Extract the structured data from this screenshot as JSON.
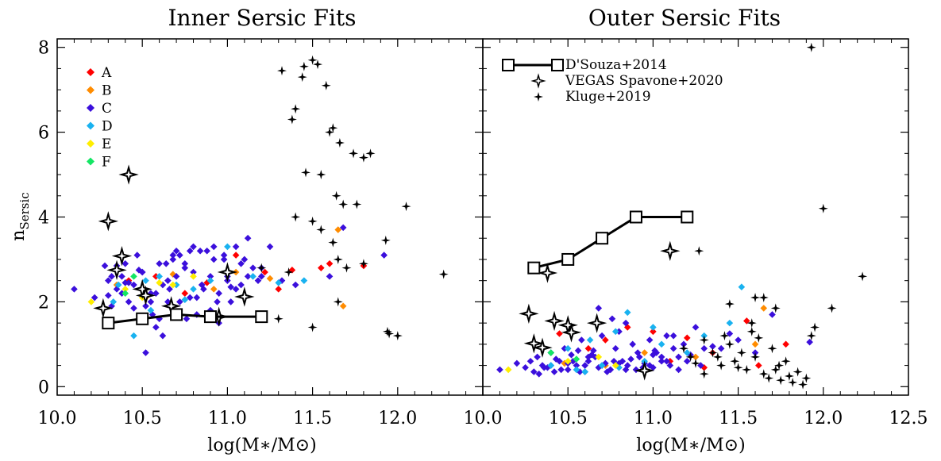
{
  "chart_data": [
    {
      "type": "scatter",
      "title": "Inner Sersic Fits",
      "xlabel": "log(M∗/M⊙)",
      "ylabel": "n",
      "ylabel_sub": "Sersic",
      "xlim": [
        10.0,
        12.5
      ],
      "ylim": [
        -0.2,
        8.2
      ],
      "xticks": [
        "10.0",
        "10.5",
        "11.0",
        "11.5",
        "12.0"
      ],
      "yticks": [
        "0",
        "2",
        "4",
        "6",
        "8"
      ],
      "legend": {
        "placement": "top-left",
        "entries": [
          {
            "label": "A",
            "color": "#ff0000"
          },
          {
            "label": "B",
            "color": "#ff8c00"
          },
          {
            "label": "C",
            "color": "#3b0fdc"
          },
          {
            "label": "D",
            "color": "#19b2f0"
          },
          {
            "label": "E",
            "color": "#ffee00"
          },
          {
            "label": "F",
            "color": "#14e664"
          }
        ]
      },
      "series": [
        {
          "name": "D'Souza+2014",
          "marker": "open-square-line",
          "x": [
            10.3,
            10.5,
            10.7,
            10.9,
            11.2
          ],
          "y": [
            1.5,
            1.6,
            1.7,
            1.65,
            1.65
          ]
        },
        {
          "name": "VEGAS Spavone+2020",
          "marker": "open-star",
          "x": [
            10.3,
            10.27,
            10.35,
            10.38,
            10.42,
            10.5,
            10.52,
            10.67,
            10.95,
            11.0,
            11.1
          ],
          "y": [
            3.9,
            1.85,
            2.75,
            3.08,
            5.0,
            2.3,
            2.15,
            1.9,
            1.65,
            2.7,
            2.12
          ]
        },
        {
          "name": "Kluge+2019",
          "marker": "filled-star",
          "x": [
            11.32,
            11.38,
            11.4,
            11.44,
            11.45,
            11.5,
            11.53,
            11.58,
            11.6,
            11.62,
            11.66,
            11.74,
            11.8,
            11.84,
            11.46,
            11.55,
            11.64,
            11.68,
            11.76,
            11.4,
            11.5,
            11.55,
            11.62,
            11.65,
            11.7,
            11.8,
            11.93,
            11.94,
            12.05,
            12.27,
            11.95,
            12.0,
            11.2,
            11.3,
            11.5,
            11.65,
            11.36
          ],
          "y": [
            7.45,
            6.3,
            6.55,
            7.3,
            7.55,
            7.7,
            7.6,
            7.1,
            6.0,
            6.1,
            5.75,
            5.5,
            5.4,
            5.5,
            5.05,
            5.0,
            4.5,
            4.3,
            4.3,
            4.0,
            3.9,
            3.7,
            3.4,
            3.0,
            2.8,
            2.9,
            3.45,
            1.3,
            4.25,
            2.65,
            1.25,
            1.2,
            2.8,
            1.6,
            1.4,
            2.0,
            2.7
          ]
        },
        {
          "name": "A",
          "marker": "diamond",
          "x": [
            10.42,
            10.58,
            10.75,
            10.88,
            11.05,
            11.22,
            11.38,
            11.3,
            11.55,
            11.6,
            11.8
          ],
          "y": [
            2.5,
            2.6,
            2.2,
            2.45,
            3.1,
            2.7,
            2.75,
            2.3,
            2.8,
            2.9,
            2.85
          ]
        },
        {
          "name": "B",
          "marker": "diamond",
          "x": [
            10.35,
            10.52,
            10.68,
            10.92,
            11.05,
            11.25,
            11.65,
            11.68
          ],
          "y": [
            2.4,
            2.1,
            2.65,
            2.3,
            2.7,
            2.55,
            3.7,
            1.9
          ]
        },
        {
          "name": "C",
          "marker": "diamond",
          "x": [
            10.1,
            10.22,
            10.28,
            10.3,
            10.32,
            10.35,
            10.38,
            10.4,
            10.42,
            10.45,
            10.47,
            10.5,
            10.52,
            10.55,
            10.58,
            10.6,
            10.62,
            10.65,
            10.68,
            10.7,
            10.72,
            10.75,
            10.78,
            10.8,
            10.82,
            10.85,
            10.88,
            10.9,
            10.92,
            10.95,
            10.98,
            11.0,
            11.02,
            11.05,
            11.08,
            11.1,
            11.12,
            11.15,
            11.18,
            11.2,
            10.3,
            10.38,
            10.45,
            10.55,
            10.62,
            10.68,
            10.75,
            10.82,
            10.9,
            10.98,
            11.05,
            11.12,
            11.2,
            10.35,
            10.42,
            10.52,
            10.6,
            10.66,
            10.72,
            10.8,
            10.86,
            10.92,
            11.0,
            11.08,
            10.48,
            10.58,
            10.65,
            10.7,
            10.78,
            10.85,
            10.95,
            11.25,
            11.32,
            11.4,
            11.6,
            11.68,
            11.92,
            10.32,
            10.4,
            10.5,
            10.56,
            10.64,
            10.76,
            10.84,
            10.94,
            11.02
          ],
          "y": [
            2.3,
            2.1,
            2.85,
            2.5,
            2.6,
            2.3,
            2.2,
            2.9,
            2.0,
            2.4,
            3.1,
            2.7,
            1.9,
            2.2,
            1.4,
            2.9,
            1.2,
            2.5,
            3.0,
            2.6,
            2.0,
            2.8,
            3.2,
            3.3,
            1.7,
            2.4,
            3.2,
            2.6,
            3.3,
            2.2,
            3.1,
            2.5,
            2.0,
            3.3,
            2.4,
            3.0,
            3.5,
            2.8,
            2.5,
            2.6,
            2.15,
            2.6,
            1.85,
            2.0,
            2.4,
            3.1,
            2.9,
            2.1,
            1.8,
            3.0,
            2.3,
            2.6,
            2.8,
            2.85,
            2.45,
            0.8,
            1.6,
            2.3,
            3.1,
            2.7,
            2.3,
            3.0,
            2.6,
            2.9,
            2.75,
            2.2,
            2.0,
            3.2,
            2.1,
            2.4,
            1.5,
            3.3,
            2.5,
            2.4,
            2.6,
            3.75,
            3.1,
            1.9,
            2.45,
            2.7,
            1.7,
            2.9,
            1.6,
            3.2,
            2.0,
            2.35
          ]
        },
        {
          "name": "D",
          "marker": "diamond",
          "x": [
            10.33,
            10.36,
            10.45,
            10.52,
            10.6,
            10.7,
            10.8,
            10.9,
            11.0,
            11.15,
            11.3,
            11.45,
            10.55,
            10.75
          ],
          "y": [
            2.0,
            2.4,
            1.2,
            2.5,
            2.6,
            2.4,
            2.3,
            2.5,
            3.3,
            2.6,
            2.45,
            2.5,
            1.8,
            2.05
          ]
        },
        {
          "name": "E",
          "marker": "diamond",
          "x": [
            10.2,
            10.4,
            10.5,
            10.6,
            10.68,
            10.8
          ],
          "y": [
            2.0,
            2.3,
            2.1,
            2.45,
            2.4,
            2.6
          ]
        },
        {
          "name": "F",
          "marker": "diamond",
          "x": [
            10.4,
            10.45
          ],
          "y": [
            2.2,
            2.6
          ]
        }
      ]
    },
    {
      "type": "scatter",
      "title": "Outer Sersic Fits",
      "xlabel": "log(M∗/M⊙)",
      "xlim": [
        10.0,
        12.5
      ],
      "ylim": [
        -0.2,
        8.2
      ],
      "xticks": [
        "10.0",
        "10.5",
        "11.0",
        "11.5",
        "12.0",
        "12.5"
      ],
      "legend": {
        "placement": "top-left",
        "entries": [
          {
            "label": "D'Souza+2014",
            "marker": "open-square-line"
          },
          {
            "label": "VEGAS Spavone+2020",
            "marker": "open-star"
          },
          {
            "label": "Kluge+2019",
            "marker": "filled-star"
          }
        ]
      },
      "series": [
        {
          "name": "D'Souza+2014",
          "marker": "open-square-line",
          "x": [
            10.3,
            10.5,
            10.7,
            10.9,
            11.2
          ],
          "y": [
            2.8,
            3.0,
            3.5,
            4.0,
            4.0
          ]
        },
        {
          "name": "VEGAS Spavone+2020",
          "marker": "open-star",
          "x": [
            10.27,
            10.3,
            10.35,
            10.38,
            10.42,
            10.5,
            10.52,
            10.67,
            10.95,
            11.1
          ],
          "y": [
            1.72,
            1.02,
            0.92,
            2.68,
            1.55,
            1.45,
            1.28,
            1.5,
            0.38,
            3.2
          ]
        },
        {
          "name": "Kluge+2019",
          "marker": "filled-star",
          "x": [
            11.93,
            12.0,
            11.27,
            12.23,
            12.05,
            11.6,
            11.65,
            11.45,
            11.72,
            11.95,
            11.93,
            11.18,
            11.22,
            11.3,
            11.35,
            11.4,
            11.42,
            11.48,
            11.5,
            11.55,
            11.58,
            11.6,
            11.62,
            11.65,
            11.7,
            11.72,
            11.75,
            11.78,
            11.8,
            11.82,
            11.85,
            11.88,
            11.9,
            11.45,
            11.52,
            11.58,
            11.25,
            11.3,
            11.38,
            11.68,
            11.74
          ],
          "y": [
            8.0,
            4.2,
            3.2,
            2.6,
            1.85,
            2.1,
            2.1,
            1.95,
            1.85,
            1.4,
            1.2,
            0.9,
            0.7,
            1.1,
            0.8,
            0.5,
            1.2,
            0.6,
            0.45,
            0.4,
            1.3,
            0.7,
            1.15,
            0.3,
            0.9,
            0.4,
            0.15,
            0.6,
            0.25,
            0.1,
            0.35,
            0.05,
            0.2,
            1.0,
            0.8,
            1.5,
            0.55,
            0.3,
            0.7,
            0.2,
            0.5
          ]
        },
        {
          "name": "A",
          "marker": "diamond",
          "x": [
            10.45,
            10.62,
            10.72,
            11.0,
            11.1,
            11.2,
            11.35,
            11.55,
            11.62,
            11.78,
            10.85,
            11.3
          ],
          "y": [
            1.25,
            0.9,
            1.1,
            1.3,
            0.6,
            1.15,
            0.8,
            1.55,
            0.5,
            1.0,
            1.4,
            0.45
          ]
        },
        {
          "name": "B",
          "marker": "diamond",
          "x": [
            10.48,
            10.72,
            10.95,
            11.25,
            11.6,
            11.65
          ],
          "y": [
            0.55,
            0.5,
            0.8,
            0.7,
            1.0,
            1.85
          ]
        },
        {
          "name": "C",
          "marker": "diamond",
          "x": [
            10.1,
            10.2,
            10.25,
            10.28,
            10.3,
            10.32,
            10.35,
            10.38,
            10.4,
            10.42,
            10.45,
            10.48,
            10.5,
            10.52,
            10.55,
            10.58,
            10.6,
            10.62,
            10.65,
            10.68,
            10.7,
            10.72,
            10.75,
            10.78,
            10.8,
            10.82,
            10.85,
            10.88,
            10.9,
            10.92,
            10.95,
            10.98,
            11.0,
            11.02,
            11.05,
            11.08,
            11.1,
            11.12,
            11.15,
            11.18,
            11.2,
            11.22,
            11.25,
            11.28,
            11.3,
            10.33,
            10.4,
            10.46,
            10.53,
            10.6,
            10.66,
            10.73,
            10.8,
            10.87,
            10.94,
            11.01,
            11.08,
            11.15,
            10.36,
            10.43,
            10.5,
            10.57,
            10.64,
            10.7,
            10.77,
            10.84,
            10.91,
            10.98,
            11.05,
            11.4,
            11.5,
            11.6,
            11.7,
            11.92,
            10.68,
            10.76,
            10.84,
            10.62,
            10.56,
            11.35,
            11.45,
            11.12,
            11.0
          ],
          "y": [
            0.4,
            0.55,
            0.45,
            0.6,
            0.35,
            0.7,
            0.5,
            0.45,
            0.8,
            0.35,
            0.6,
            0.9,
            0.4,
            0.75,
            0.5,
            1.1,
            0.35,
            0.6,
            0.85,
            0.45,
            1.2,
            0.55,
            0.4,
            0.9,
            1.3,
            0.6,
            0.5,
            1.0,
            0.4,
            0.7,
            0.55,
            1.1,
            0.45,
            0.8,
            0.6,
            1.2,
            0.5,
            0.9,
            0.7,
            1.0,
            0.6,
            0.75,
            1.4,
            0.5,
            0.9,
            0.3,
            0.5,
            0.4,
            0.6,
            0.5,
            0.7,
            0.35,
            0.55,
            0.65,
            0.45,
            0.85,
            0.6,
            0.4,
            0.45,
            0.65,
            0.55,
            0.35,
            0.75,
            0.5,
            0.6,
            0.4,
            0.8,
            0.5,
            0.7,
            0.9,
            1.1,
            0.8,
            1.7,
            1.05,
            1.85,
            1.6,
            1.5,
            0.7,
            0.85,
            0.95,
            1.25,
            1.2,
            0.75
          ]
        },
        {
          "name": "D",
          "marker": "diamond",
          "x": [
            10.4,
            10.5,
            10.55,
            10.63,
            10.7,
            10.78,
            10.85,
            10.95,
            11.05,
            11.2,
            11.3,
            11.45,
            11.52,
            10.6,
            10.8,
            11.0
          ],
          "y": [
            0.5,
            0.9,
            0.4,
            1.1,
            0.5,
            1.3,
            1.75,
            0.6,
            1.0,
            0.8,
            1.2,
            1.5,
            2.35,
            0.35,
            0.45,
            1.4
          ]
        },
        {
          "name": "E",
          "marker": "diamond",
          "x": [
            10.15,
            10.5,
            10.68,
            10.78
          ],
          "y": [
            0.4,
            0.6,
            0.7,
            0.5
          ]
        },
        {
          "name": "F",
          "marker": "diamond",
          "x": [
            10.4,
            10.55
          ],
          "y": [
            0.8,
            0.65
          ]
        }
      ]
    }
  ]
}
